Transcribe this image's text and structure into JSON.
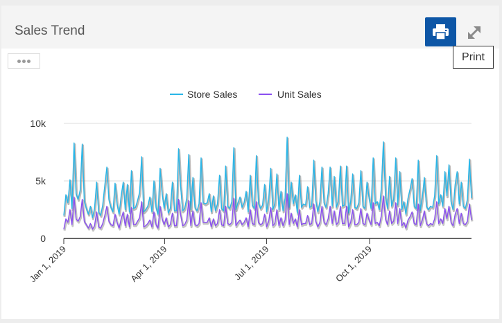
{
  "panel": {
    "title": "Sales Trend",
    "print_tooltip": "Print",
    "icons": {
      "print": "printer-icon",
      "expand": "expand-icon",
      "more": "ellipsis-icon"
    }
  },
  "colors": {
    "store_sales": "#29b6e8",
    "unit_sales": "#8a4ff0",
    "print_button": "#0d56a6"
  },
  "chart_data": {
    "type": "line",
    "title": "",
    "xlabel": "",
    "ylabel": "",
    "x_range": [
      "2019-01-01",
      "2019-12-31"
    ],
    "x_ticks": [
      "Jan 1, 2019",
      "Apr 1, 2019",
      "Jul 1, 2019",
      "Oct 1, 2019"
    ],
    "y_ticks": [
      "0",
      "5k",
      "10k"
    ],
    "ylim": [
      0,
      10000
    ],
    "grid": true,
    "legend": "top-center",
    "series": [
      {
        "name": "Store Sales",
        "values": [
          2000,
          3800,
          3100,
          5100,
          2600,
          8300,
          3900,
          3400,
          4200,
          8200,
          3300,
          2600,
          2100,
          2800,
          1800,
          2600,
          4900,
          2300,
          2000,
          2900,
          4600,
          6200,
          3400,
          2700,
          2300,
          4800,
          3000,
          2100,
          3700,
          4900,
          2500,
          4700,
          2300,
          5900,
          2600,
          2700,
          3300,
          4000,
          7100,
          2300,
          2500,
          2800,
          3600,
          2300,
          5000,
          2700,
          2100,
          6100,
          3900,
          2600,
          3900,
          2200,
          2600,
          4900,
          2400,
          2400,
          7800,
          4600,
          2400,
          2600,
          3500,
          7300,
          2500,
          5300,
          2700,
          2400,
          3000,
          7000,
          3100,
          3000,
          3100,
          3900,
          2300,
          3700,
          2400,
          3000,
          5500,
          2600,
          2400,
          6300,
          2800,
          2600,
          3200,
          7900,
          2500,
          3100,
          3600,
          2700,
          3100,
          4100,
          2300,
          5500,
          2900,
          2600,
          7200,
          3100,
          2600,
          2900,
          4700,
          2300,
          3400,
          6100,
          2500,
          3000,
          5600,
          2500,
          4100,
          2400,
          3500,
          8800,
          2700,
          4900,
          3000,
          3800,
          2200,
          5500,
          2700,
          3000,
          2900,
          4500,
          2700,
          2800,
          6800,
          3300,
          2300,
          3200,
          6200,
          3100,
          2700,
          3900,
          6200,
          2800,
          5400,
          2700,
          3200,
          6300,
          2800,
          2900,
          6300,
          2200,
          3200,
          5600,
          2700,
          2600,
          3100,
          5900,
          2800,
          2600,
          4900,
          3500,
          2600,
          7000,
          3000,
          3200,
          2500,
          4400,
          8400,
          3700,
          2600,
          5400,
          2800,
          3400,
          7000,
          2900,
          5800,
          2500,
          3200,
          2100,
          3500,
          4300,
          5200,
          2800,
          2600,
          6800,
          2400,
          3600,
          5300,
          2800,
          2500,
          2800,
          2700,
          3700,
          7200,
          3000,
          3800,
          2800,
          5800,
          3700,
          6400,
          3200,
          2500,
          4700,
          5800,
          3000,
          4900,
          2800,
          2600,
          3400,
          6900,
          3500
        ]
      },
      {
        "name": "Unit Sales",
        "values": [
          800,
          1700,
          1400,
          2500,
          1200,
          3600,
          1700,
          1500,
          1900,
          3400,
          1500,
          1200,
          900,
          1300,
          800,
          1100,
          2300,
          1000,
          900,
          1300,
          2000,
          2800,
          1500,
          1200,
          1100,
          2100,
          1400,
          900,
          1700,
          2300,
          1100,
          2100,
          1000,
          2700,
          1200,
          1200,
          1500,
          1800,
          3200,
          1000,
          1100,
          1300,
          1600,
          1000,
          2300,
          1200,
          900,
          2800,
          1700,
          1200,
          1800,
          1000,
          1200,
          2200,
          1100,
          1100,
          3400,
          2100,
          1100,
          1200,
          1600,
          3300,
          1100,
          2400,
          1200,
          1100,
          1300,
          3100,
          1400,
          1400,
          1400,
          1800,
          1000,
          1700,
          1100,
          1300,
          2500,
          1200,
          1100,
          2800,
          1300,
          1200,
          1400,
          3500,
          1100,
          1400,
          1600,
          1200,
          1400,
          1800,
          1000,
          2500,
          1300,
          1200,
          3200,
          1400,
          1200,
          1300,
          2100,
          1000,
          1500,
          2700,
          1100,
          1300,
          2500,
          1100,
          1800,
          1100,
          1600,
          3900,
          1200,
          2200,
          1300,
          1700,
          1000,
          2500,
          1200,
          1300,
          1300,
          2000,
          1200,
          1300,
          3000,
          1500,
          1000,
          1400,
          2800,
          1400,
          1200,
          1700,
          2800,
          1300,
          2400,
          1200,
          1400,
          2800,
          1300,
          1300,
          2800,
          1000,
          1400,
          2500,
          1200,
          1200,
          1400,
          2600,
          1300,
          1200,
          2200,
          1600,
          1200,
          3100,
          1300,
          1400,
          1100,
          2000,
          3700,
          1700,
          1200,
          2400,
          1300,
          1500,
          3100,
          1300,
          2600,
          1100,
          1400,
          900,
          1600,
          1900,
          2300,
          1300,
          1200,
          3000,
          1100,
          1600,
          2400,
          1300,
          1100,
          1300,
          1200,
          1700,
          3200,
          1300,
          1700,
          1300,
          2600,
          1700,
          2800,
          1400,
          1100,
          2100,
          2600,
          1300,
          2200,
          1300,
          1200,
          1500,
          3000,
          1600
        ]
      }
    ]
  }
}
